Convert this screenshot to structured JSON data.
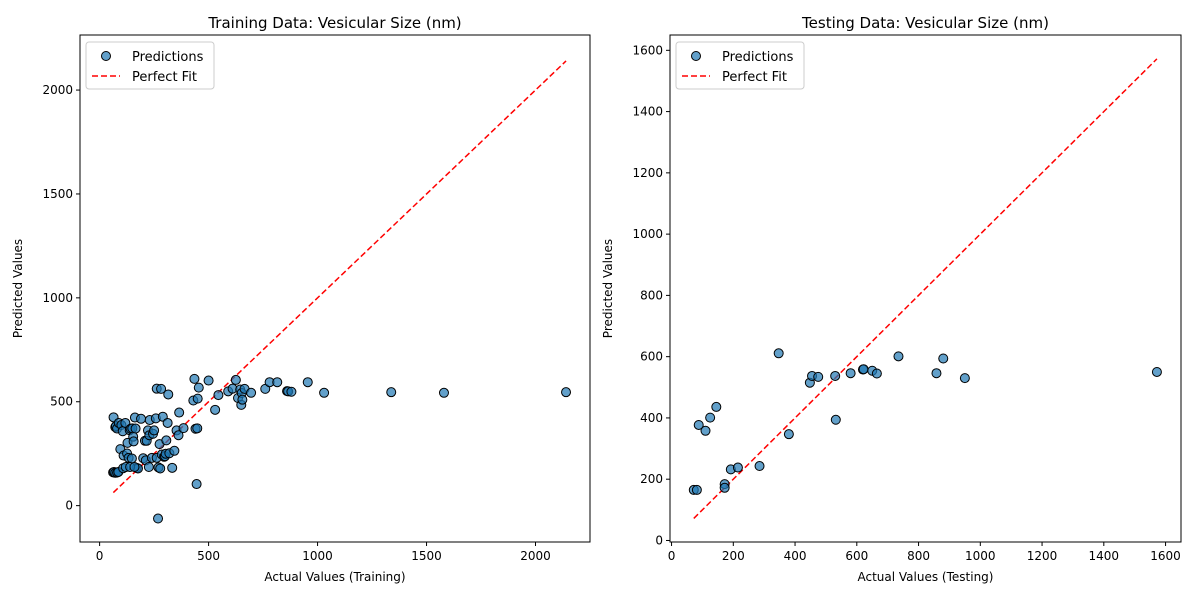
{
  "chart_data": [
    {
      "type": "scatter",
      "title": "Training Data: Vesicular  Size (nm)",
      "xlabel": "Actual Values (Training)",
      "ylabel": "Predicted Values",
      "xlim": [
        -90,
        2250
      ],
      "ylim": [
        -175,
        2265
      ],
      "xticks": [
        0,
        500,
        1000,
        1500,
        2000
      ],
      "yticks": [
        0,
        500,
        1000,
        1500,
        2000
      ],
      "grid": false,
      "legend": "top-left",
      "perfect_fit": [
        63,
        2140
      ],
      "series": [
        {
          "name": "Predictions",
          "color": "#1f77b4",
          "points": [
            [
              64,
              425
            ],
            [
              72,
              378
            ],
            [
              75,
              383
            ],
            [
              80,
              371
            ],
            [
              88,
              398
            ],
            [
              95,
              272
            ],
            [
              100,
              388
            ],
            [
              106,
              358
            ],
            [
              110,
              241
            ],
            [
              118,
              398
            ],
            [
              126,
              251
            ],
            [
              128,
              302
            ],
            [
              133,
              230
            ],
            [
              138,
              363
            ],
            [
              142,
              370
            ],
            [
              148,
              227
            ],
            [
              150,
              372
            ],
            [
              154,
              332
            ],
            [
              156,
              309
            ],
            [
              162,
              424
            ],
            [
              165,
              371
            ],
            [
              170,
              182
            ],
            [
              176,
              179
            ],
            [
              190,
              418
            ],
            [
              200,
              228
            ],
            [
              208,
              312
            ],
            [
              212,
              218
            ],
            [
              216,
              312
            ],
            [
              222,
              362
            ],
            [
              226,
              186
            ],
            [
              228,
              339
            ],
            [
              230,
              412
            ],
            [
              240,
              230
            ],
            [
              245,
              346
            ],
            [
              250,
              362
            ],
            [
              258,
              420
            ],
            [
              262,
              230
            ],
            [
              262,
              563
            ],
            [
              270,
              184
            ],
            [
              275,
              296
            ],
            [
              278,
              179
            ],
            [
              282,
              562
            ],
            [
              285,
              246
            ],
            [
              290,
              428
            ],
            [
              296,
              235
            ],
            [
              300,
              238
            ],
            [
              303,
              250
            ],
            [
              306,
              314
            ],
            [
              312,
              398
            ],
            [
              315,
              535
            ],
            [
              320,
              252
            ],
            [
              333,
              182
            ],
            [
              343,
              264
            ],
            [
              353,
              362
            ],
            [
              362,
              339
            ],
            [
              365,
              448
            ],
            [
              385,
              373
            ],
            [
              430,
              506
            ],
            [
              435,
              610
            ],
            [
              440,
              370
            ],
            [
              445,
              104
            ],
            [
              448,
              372
            ],
            [
              450,
              515
            ],
            [
              455,
              568
            ],
            [
              500,
              602
            ],
            [
              530,
              461
            ],
            [
              545,
              532
            ],
            [
              590,
              550
            ],
            [
              610,
              563
            ],
            [
              625,
              605
            ],
            [
              635,
              518
            ],
            [
              645,
              559
            ],
            [
              650,
              485
            ],
            [
              652,
              542
            ],
            [
              655,
              510
            ],
            [
              665,
              562
            ],
            [
              695,
              543
            ],
            [
              760,
              562
            ],
            [
              780,
              594
            ],
            [
              815,
              594
            ],
            [
              860,
              551
            ],
            [
              865,
              550
            ],
            [
              880,
              548
            ],
            [
              955,
              594
            ],
            [
              1030,
              543
            ],
            [
              1338,
              546
            ],
            [
              1580,
              543
            ],
            [
              2140,
              546
            ],
            [
              62,
              160
            ],
            [
              66,
              162
            ],
            [
              72,
              158
            ],
            [
              80,
              159
            ],
            [
              86,
              162
            ],
            [
              108,
              180
            ],
            [
              120,
              186
            ],
            [
              140,
              186
            ],
            [
              160,
              186
            ],
            [
              268,
              -62
            ]
          ]
        },
        {
          "name": "Perfect Fit",
          "color": "#ff0000",
          "style": "dashed"
        }
      ]
    },
    {
      "type": "scatter",
      "title": "Testing Data: Vesicular  Size (nm)",
      "xlabel": "Actual Values (Testing)",
      "ylabel": "Predicted Values",
      "xlim": [
        -5,
        1650
      ],
      "ylim": [
        -5,
        1650
      ],
      "xticks": [
        0,
        200,
        400,
        600,
        800,
        1000,
        1200,
        1400,
        1600
      ],
      "yticks": [
        0,
        200,
        400,
        600,
        800,
        1000,
        1200,
        1400,
        1600
      ],
      "grid": false,
      "legend": "top-left",
      "perfect_fit": [
        72,
        1572
      ],
      "series": [
        {
          "name": "Predictions",
          "color": "#1f77b4",
          "points": [
            [
              72,
              165
            ],
            [
              82,
              165
            ],
            [
              88,
              377
            ],
            [
              110,
              358
            ],
            [
              125,
              401
            ],
            [
              145,
              436
            ],
            [
              172,
              184
            ],
            [
              172,
              172
            ],
            [
              192,
              232
            ],
            [
              215,
              238
            ],
            [
              285,
              243
            ],
            [
              347,
              611
            ],
            [
              380,
              347
            ],
            [
              448,
              515
            ],
            [
              455,
              537
            ],
            [
              475,
              534
            ],
            [
              530,
              537
            ],
            [
              532,
              394
            ],
            [
              580,
              546
            ],
            [
              620,
              558
            ],
            [
              622,
              559
            ],
            [
              650,
              554
            ],
            [
              665,
              545
            ],
            [
              735,
              601
            ],
            [
              858,
              546
            ],
            [
              880,
              594
            ],
            [
              950,
              530
            ],
            [
              1572,
              550
            ]
          ]
        },
        {
          "name": "Perfect Fit",
          "color": "#ff0000",
          "style": "dashed"
        }
      ]
    }
  ]
}
